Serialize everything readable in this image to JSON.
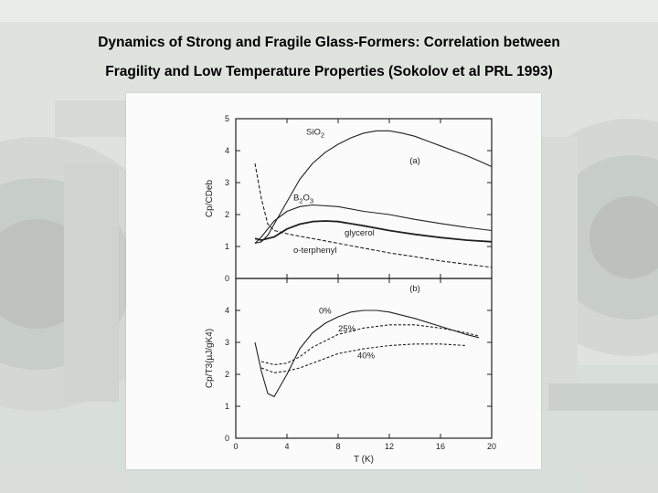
{
  "slide": {
    "title_line_1": "Dynamics of Strong and Fragile Glass-Formers: Correlation between",
    "title_line_2": "Fragility and Low Temperature Properties (Sokolov et al PRL 1993)"
  },
  "colors": {
    "background": "#cfd6cf",
    "figure": "#fbfbfb",
    "ink": "#222222"
  },
  "chart_data": [
    {
      "panel": "(a)",
      "type": "line",
      "ylabel": "Cp/CDeb",
      "xlim": [
        0,
        20
      ],
      "ylim": [
        0,
        5
      ],
      "x_ticks": [
        0,
        4,
        8,
        12,
        16,
        20
      ],
      "y_ticks": [
        0,
        1,
        2,
        3,
        4,
        5
      ],
      "grid": false,
      "series": [
        {
          "name": "SiO2",
          "label_parts": [
            "SiO",
            "2"
          ],
          "label_at": [
            5.5,
            4.5
          ],
          "x": [
            1.5,
            2,
            2.5,
            3,
            4,
            5,
            6,
            7,
            8,
            9,
            10,
            11,
            12,
            13,
            14,
            15,
            16,
            17,
            18,
            19,
            20
          ],
          "y": [
            1.1,
            1.15,
            1.35,
            1.7,
            2.4,
            3.1,
            3.6,
            3.95,
            4.2,
            4.4,
            4.55,
            4.62,
            4.62,
            4.55,
            4.45,
            4.3,
            4.15,
            4.0,
            3.85,
            3.68,
            3.5
          ]
        },
        {
          "name": "B2O3",
          "label_parts": [
            "B",
            "2",
            "O",
            "3"
          ],
          "label_at": [
            4.5,
            2.45
          ],
          "x": [
            1.5,
            2,
            3,
            4,
            5,
            6,
            8,
            10,
            12,
            14,
            16,
            18,
            20
          ],
          "y": [
            1.1,
            1.3,
            1.8,
            2.1,
            2.25,
            2.3,
            2.25,
            2.1,
            2.0,
            1.85,
            1.72,
            1.6,
            1.5
          ]
        },
        {
          "name": "glycerol",
          "label_at": [
            8.5,
            1.35
          ],
          "x": [
            1.5,
            2,
            3,
            4,
            5,
            6,
            7,
            8,
            10,
            12,
            14,
            16,
            18,
            20
          ],
          "y": [
            1.25,
            1.2,
            1.3,
            1.55,
            1.7,
            1.78,
            1.8,
            1.78,
            1.65,
            1.5,
            1.38,
            1.28,
            1.2,
            1.15
          ]
        },
        {
          "name": "o-terphenyl",
          "label_at": [
            4.5,
            0.8
          ],
          "x": [
            1.5,
            2,
            2.5,
            3,
            4,
            5,
            6,
            8,
            10,
            12,
            14,
            16,
            18,
            20
          ],
          "y": [
            3.6,
            2.5,
            1.7,
            1.5,
            1.4,
            1.32,
            1.25,
            1.1,
            0.95,
            0.8,
            0.68,
            0.55,
            0.45,
            0.35
          ]
        }
      ]
    },
    {
      "panel": "(b)",
      "type": "line",
      "xlabel": "T (K)",
      "ylabel": "Cp/T3(µJ/gK4)",
      "xlim": [
        0,
        20
      ],
      "ylim": [
        0,
        5
      ],
      "x_ticks": [
        0,
        4,
        8,
        12,
        16,
        20
      ],
      "y_ticks": [
        0,
        1,
        2,
        3,
        4
      ],
      "grid": false,
      "series": [
        {
          "name": "0%",
          "label_at": [
            6.5,
            3.9
          ],
          "x": [
            1.5,
            2,
            2.5,
            3,
            4,
            5,
            6,
            7,
            8,
            9,
            10,
            11,
            12,
            14,
            16,
            18,
            19
          ],
          "y": [
            3.0,
            2.1,
            1.4,
            1.3,
            2.0,
            2.8,
            3.3,
            3.6,
            3.8,
            3.95,
            4.0,
            4.0,
            3.95,
            3.75,
            3.5,
            3.25,
            3.15
          ]
        },
        {
          "name": "25%",
          "label_at": [
            8.0,
            3.35
          ],
          "x": [
            2,
            3,
            4,
            5,
            6,
            8,
            10,
            12,
            14,
            16,
            18,
            19
          ],
          "y": [
            2.4,
            2.3,
            2.35,
            2.55,
            2.85,
            3.25,
            3.45,
            3.55,
            3.55,
            3.45,
            3.3,
            3.2
          ]
        },
        {
          "name": "40%",
          "label_at": [
            9.5,
            2.5
          ],
          "x": [
            2,
            3,
            4,
            5,
            6,
            8,
            10,
            12,
            14,
            16,
            18
          ],
          "y": [
            2.2,
            2.05,
            2.1,
            2.2,
            2.35,
            2.65,
            2.8,
            2.9,
            2.95,
            2.95,
            2.9
          ]
        }
      ]
    }
  ]
}
